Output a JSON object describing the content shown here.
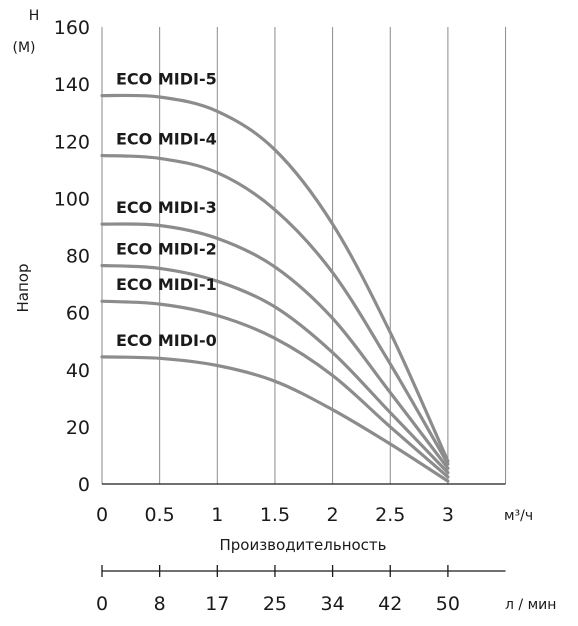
{
  "chart_data": {
    "type": "line",
    "ylabel_top": "Н",
    "ylabel_top_unit": "(М)",
    "ylabel": "Напор",
    "xlabel": "Производительность",
    "x_unit": "м³/ч",
    "x2_unit": "л / мин",
    "ylim": [
      0,
      160
    ],
    "xlim": [
      0,
      3.5
    ],
    "y_ticks": [
      0,
      20,
      40,
      60,
      80,
      100,
      120,
      140,
      160
    ],
    "x_ticks": [
      0,
      0.5,
      1,
      1.5,
      2,
      2.5,
      3
    ],
    "x_tick_labels": [
      "0",
      "0.5",
      "1",
      "1.5",
      "2",
      "2.5",
      "3"
    ],
    "x2_ticks": [
      0,
      8,
      17,
      25,
      34,
      42,
      50
    ],
    "grid": "vertical",
    "series": [
      {
        "name": "ECO MIDI-0",
        "x": [
          0,
          0.5,
          1,
          1.5,
          2,
          2.5,
          3
        ],
        "y": [
          44.5,
          44,
          41.5,
          36,
          26,
          14,
          1
        ]
      },
      {
        "name": "ECO MIDI-1",
        "x": [
          0,
          0.5,
          1,
          1.5,
          2,
          2.5,
          3
        ],
        "y": [
          64,
          63,
          59,
          51,
          38,
          20,
          2.5
        ]
      },
      {
        "name": "ECO MIDI-2",
        "x": [
          0,
          0.5,
          1,
          1.5,
          2,
          2.5,
          3
        ],
        "y": [
          76.5,
          75.5,
          71,
          62,
          46,
          25,
          4
        ]
      },
      {
        "name": "ECO MIDI-3",
        "x": [
          0,
          0.5,
          1,
          1.5,
          2,
          2.5,
          3
        ],
        "y": [
          91,
          90.5,
          86,
          76,
          58,
          32,
          5.5
        ]
      },
      {
        "name": "ECO MIDI-4",
        "x": [
          0,
          0.5,
          1,
          1.5,
          2,
          2.5,
          3
        ],
        "y": [
          115,
          114,
          109,
          96,
          74,
          42,
          7
        ]
      },
      {
        "name": "ECO MIDI-5",
        "x": [
          0,
          0.5,
          1,
          1.5,
          2,
          2.5,
          3
        ],
        "y": [
          136,
          135.5,
          130.5,
          117,
          91,
          53,
          8
        ]
      }
    ]
  }
}
